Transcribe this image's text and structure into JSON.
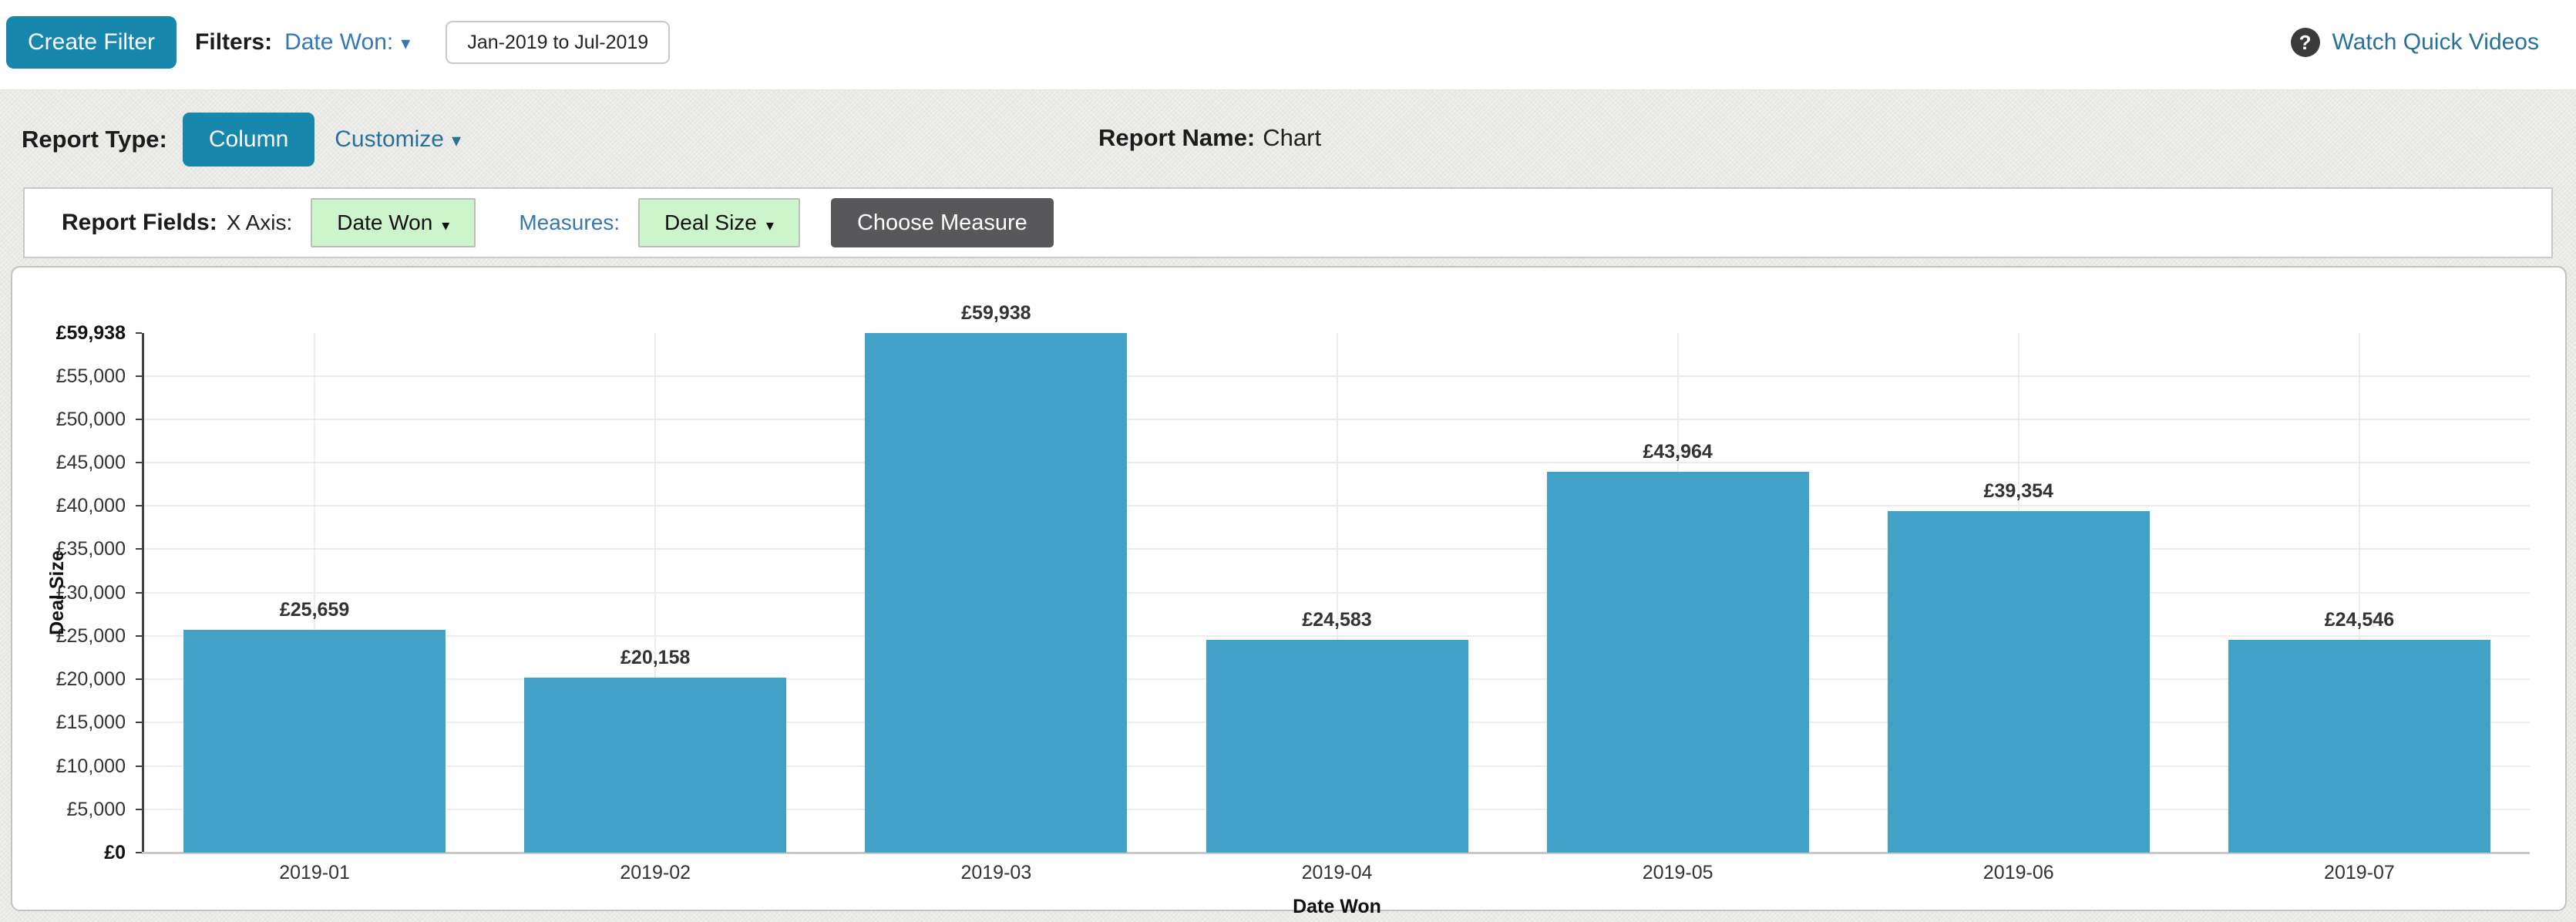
{
  "header": {
    "create_filter": "Create Filter",
    "filters_label": "Filters:",
    "date_filter_label": "Date Won:",
    "date_range": "Jan-2019 to Jul-2019",
    "watch_videos": "Watch Quick Videos"
  },
  "report_bar": {
    "type_label": "Report Type:",
    "type_value": "Column",
    "customize_label": "Customize",
    "name_label": "Report Name:",
    "name_value": "Chart"
  },
  "fields_bar": {
    "fields_label": "Report Fields:",
    "x_axis_label": "X Axis:",
    "x_axis_value": "Date Won",
    "measures_label": "Measures:",
    "measure_value": "Deal Size",
    "choose_measure": "Choose Measure"
  },
  "chart_data": {
    "type": "bar",
    "title": "",
    "xlabel": "Date Won",
    "ylabel": "Deal Size",
    "currency": "£",
    "categories": [
      "2019-01",
      "2019-02",
      "2019-03",
      "2019-04",
      "2019-05",
      "2019-06",
      "2019-07"
    ],
    "values": [
      25659,
      20158,
      59938,
      24583,
      43964,
      39354,
      24546
    ],
    "value_labels": [
      "£25,659",
      "£20,158",
      "£59,938",
      "£24,583",
      "£43,964",
      "£39,354",
      "£24,546"
    ],
    "ylim": [
      0,
      59938
    ],
    "y_ticks": [
      {
        "value": 0,
        "label": "£0",
        "bold": true
      },
      {
        "value": 5000,
        "label": "£5,000"
      },
      {
        "value": 10000,
        "label": "£10,000"
      },
      {
        "value": 15000,
        "label": "£15,000"
      },
      {
        "value": 20000,
        "label": "£20,000"
      },
      {
        "value": 25000,
        "label": "£25,000"
      },
      {
        "value": 30000,
        "label": "£30,000"
      },
      {
        "value": 35000,
        "label": "£35,000"
      },
      {
        "value": 40000,
        "label": "£40,000"
      },
      {
        "value": 45000,
        "label": "£45,000"
      },
      {
        "value": 50000,
        "label": "£50,000"
      },
      {
        "value": 55000,
        "label": "£55,000"
      },
      {
        "value": 59938,
        "label": "£59,938",
        "bold": true
      }
    ],
    "bar_color": "#41a1c7",
    "grid": true,
    "legend": "none"
  }
}
